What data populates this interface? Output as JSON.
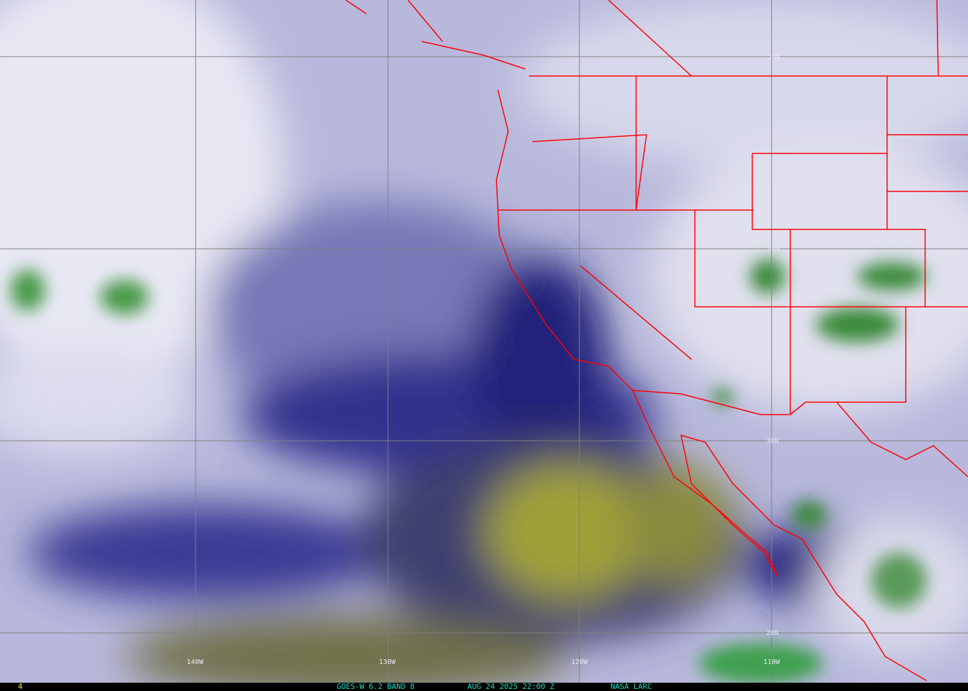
{
  "footer": {
    "frame_number": "4",
    "satellite_band": "GOES-W 6.2 BAND 8",
    "datetime": "AUG 24 2025 22:00 Z",
    "credit": "NASA LARC"
  },
  "grid": {
    "longitudes": [
      "140W",
      "130W",
      "120W",
      "110W"
    ],
    "latitudes": [
      "50N",
      "40N",
      "30N",
      "20N"
    ]
  },
  "colors": {
    "boundary": "#ff0000",
    "grid": "#808080",
    "dry": "#a8a830",
    "moist": "#e8e8f4",
    "mid": "#1a1a80",
    "cloud": "#3a8a3a",
    "footer_text": "#20d8c0",
    "frame_text": "#e8e840"
  }
}
